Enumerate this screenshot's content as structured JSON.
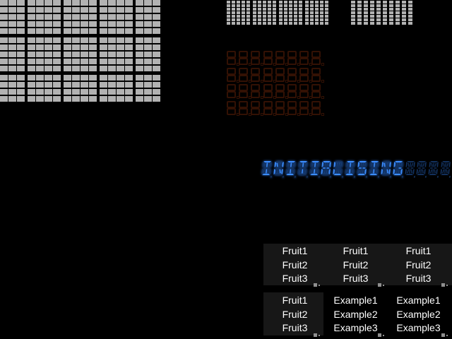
{
  "screen": {
    "background": "#000000"
  },
  "led_widgets": {
    "large_matrix": {
      "description": "large unlit LED cell matrix, top-left",
      "cell_color": "#b2b2b2",
      "col_groups": [
        3,
        4,
        4,
        4,
        3
      ],
      "row_groups": [
        5,
        5,
        4
      ]
    },
    "char_matrix": {
      "description": "four 5x7 dot-matrix character cells, all dots unlit",
      "cell_color": "#b2b2b2",
      "char_cells": 4,
      "cols_per_cell": 5,
      "rows": 7
    },
    "block_matrix": {
      "description": "10x7 dot block, top-right, all dots unlit",
      "cell_color": "#b2b2b2",
      "cols": 10,
      "rows": 7
    },
    "seven_segment_panel": {
      "description": "8x4 grid of unlit seven-segment digits with decimal points",
      "segment_color": "#331104",
      "cols": 8,
      "rows": 4
    },
    "alpha_display": {
      "text": "INITIALISING",
      "total_cells": 16,
      "on_color": "#3b8dff",
      "off_color": "#12305c"
    }
  },
  "listboxes": {
    "top_row": [
      {
        "id": "fruit-list-1",
        "items": [
          "Fruit1",
          "Fruit2",
          "Fruit3"
        ]
      },
      {
        "id": "fruit-list-2",
        "items": [
          "Fruit1",
          "Fruit2",
          "Fruit3"
        ]
      },
      {
        "id": "fruit-list-3",
        "items": [
          "Fruit1",
          "Fruit2",
          "Fruit3"
        ]
      }
    ],
    "bottom_row": [
      {
        "id": "fruit-list-4",
        "items": [
          "Fruit1",
          "Fruit2",
          "Fruit3"
        ]
      },
      {
        "id": "example-list-1",
        "items": [
          "Example1",
          "Example2",
          "Example3"
        ]
      },
      {
        "id": "example-list-2",
        "items": [
          "Example1",
          "Example2",
          "Example3"
        ]
      }
    ]
  }
}
